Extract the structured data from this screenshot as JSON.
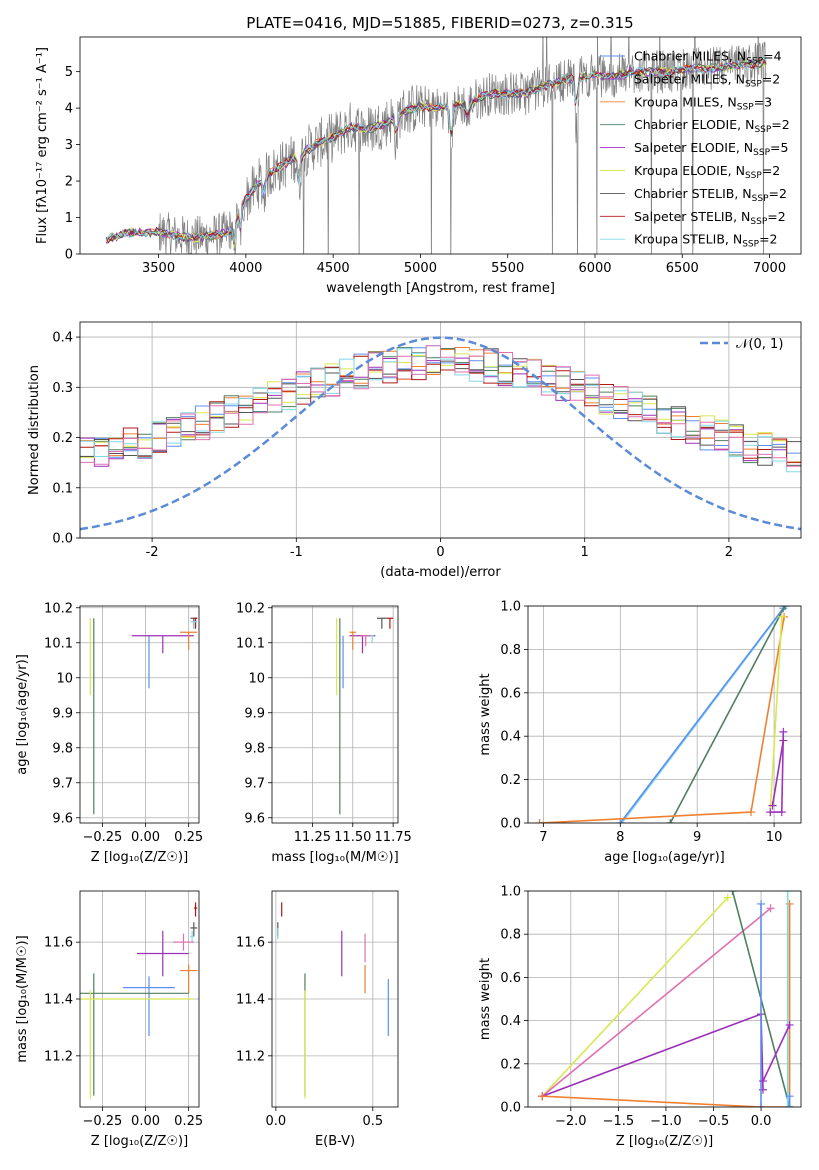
{
  "figure_title": "PLATE=0416, MJD=51885, FIBERID=0273, z=0.315",
  "colors": {
    "chabrier_miles": "#5b8ff0",
    "salpeter_miles": "#9b30b5",
    "kroupa_miles": "#f08030",
    "chabrier_elodie": "#4f7f5f",
    "salpeter_elodie": "#a030c0",
    "kroupa_elodie": "#d8e850",
    "chabrier_stelib": "#555555",
    "salpeter_stelib": "#b01818",
    "kroupa_stelib": "#80d8e8",
    "data": "#808080",
    "pink": "#e070b0",
    "normal": "#5b8ad8"
  },
  "chart_data": [
    {
      "type": "line",
      "title": "PLATE=0416, MJD=51885, FIBERID=0273, z=0.315",
      "xlabel": "wavelength [Angstrom, rest frame]",
      "ylabel": "Flux [fλ10⁻¹⁷ erg cm⁻² s⁻¹ A⁻¹]",
      "xlim": [
        3050,
        7180
      ],
      "ylim": [
        0,
        5.95
      ],
      "xticks": [
        3500,
        4000,
        4500,
        5000,
        5500,
        6000,
        6500,
        7000
      ],
      "yticks": [
        0,
        1,
        2,
        3,
        4,
        5
      ],
      "grid": false,
      "legend_position": "top-right",
      "legend": [
        {
          "label": "Chabrier MILES, N",
          "sub": "SSP",
          "tail": "=4",
          "color_key": "chabrier_miles"
        },
        {
          "label": "Salpeter MILES, N",
          "sub": "SSP",
          "tail": "=2",
          "color_key": "salpeter_miles"
        },
        {
          "label": "Kroupa MILES, N",
          "sub": "SSP",
          "tail": "=3",
          "color_key": "kroupa_miles"
        },
        {
          "label": "Chabrier ELODIE, N",
          "sub": "SSP",
          "tail": "=2",
          "color_key": "chabrier_elodie"
        },
        {
          "label": "Salpeter ELODIE, N",
          "sub": "SSP",
          "tail": "=5",
          "color_key": "salpeter_elodie"
        },
        {
          "label": "Kroupa ELODIE, N",
          "sub": "SSP",
          "tail": "=2",
          "color_key": "kroupa_elodie"
        },
        {
          "label": "Chabrier STELIB, N",
          "sub": "SSP",
          "tail": "=2",
          "color_key": "chabrier_stelib"
        },
        {
          "label": "Salpeter STELIB, N",
          "sub": "SSP",
          "tail": "=2",
          "color_key": "salpeter_stelib"
        },
        {
          "label": "Kroupa STELIB, N",
          "sub": "SSP",
          "tail": "=2",
          "color_key": "kroupa_stelib"
        }
      ],
      "continuum": {
        "x": [
          3200,
          3350,
          3500,
          3600,
          3700,
          3800,
          3900,
          4000,
          4100,
          4200,
          4300,
          4400,
          4500,
          4600,
          4700,
          4800,
          4900,
          5000,
          5100,
          5200,
          5300,
          5400,
          5500,
          5600,
          5700,
          5800,
          5900,
          6000,
          6100,
          6200,
          6300,
          6400,
          6500,
          6600,
          6700,
          6800,
          6950
        ],
        "y": [
          0.4,
          0.6,
          0.6,
          0.5,
          0.45,
          0.5,
          0.6,
          1.5,
          2.1,
          2.4,
          2.7,
          3.0,
          3.2,
          3.5,
          3.4,
          3.6,
          3.9,
          4.05,
          4.0,
          4.05,
          4.2,
          4.4,
          4.4,
          4.4,
          4.6,
          4.75,
          4.85,
          4.9,
          4.85,
          5.0,
          5.0,
          5.0,
          5.05,
          5.1,
          5.1,
          5.15,
          5.25
        ]
      },
      "absorption_features": [
        {
          "x": 3933,
          "depth": 0.6
        },
        {
          "x": 3968,
          "depth": 0.5
        },
        {
          "x": 4102,
          "depth": 0.4
        },
        {
          "x": 4304,
          "depth": 0.7
        },
        {
          "x": 4861,
          "depth": 0.5
        },
        {
          "x": 5175,
          "depth": 0.9
        },
        {
          "x": 5270,
          "depth": 0.4
        },
        {
          "x": 5893,
          "depth": 0.9
        }
      ]
    },
    {
      "type": "area",
      "xlabel": "(data-model)/error",
      "ylabel": "Normed distribution",
      "xlim": [
        -2.5,
        2.5
      ],
      "ylim": [
        0,
        0.43
      ],
      "xticks": [
        -2,
        -1,
        0,
        1,
        2
      ],
      "yticks": [
        0.0,
        0.1,
        0.2,
        0.3,
        0.4
      ],
      "grid": true,
      "legend_position": "top-right",
      "legend_label": "𝒩(0, 1)",
      "bin_width": 0.1,
      "series_color_keys": [
        "chabrier_miles",
        "salpeter_miles",
        "kroupa_miles",
        "chabrier_elodie",
        "kroupa_elodie",
        "chabrier_stelib",
        "salpeter_stelib",
        "kroupa_stelib",
        "pink"
      ],
      "curve": {
        "mean": 0,
        "sigma": 1
      }
    },
    {
      "type": "scatter",
      "xlabel": "Z [log₁₀(Z/Z☉)]",
      "ylabel": "age  [log₁₀(age/yr)]",
      "xlim": [
        -0.38,
        0.31
      ],
      "ylim": [
        9.585,
        10.205
      ],
      "xticks": [
        -0.25,
        0.0,
        0.25
      ],
      "xtick_labels": [
        "−0.25",
        "0.00",
        "0.25"
      ],
      "yticks": [
        9.6,
        9.7,
        9.8,
        9.9,
        10.0,
        10.1,
        10.2
      ],
      "grid": true,
      "points": [
        {
          "x": 0.02,
          "y": 10.12,
          "xerr": 0.0,
          "yerr_lo": 0.15,
          "yerr_hi": 0.0,
          "color_key": "chabrier_miles"
        },
        {
          "x": 0.1,
          "y": 10.12,
          "xerr": 0.18,
          "yerr_lo": 0.05,
          "yerr_hi": 0.0,
          "color_key": "salpeter_miles"
        },
        {
          "x": 0.25,
          "y": 10.13,
          "xerr": 0.05,
          "yerr_lo": 0.05,
          "yerr_hi": 0.0,
          "color_key": "kroupa_miles"
        },
        {
          "x": -0.3,
          "y": 10.17,
          "xerr": 0.0,
          "yerr_lo": 0.56,
          "yerr_hi": 0.0,
          "color_key": "chabrier_elodie"
        },
        {
          "x": -0.32,
          "y": 10.17,
          "xerr": 0.0,
          "yerr_lo": 0.22,
          "yerr_hi": 0.0,
          "color_key": "kroupa_elodie"
        },
        {
          "x": 0.28,
          "y": 10.17,
          "xerr": 0.02,
          "yerr_lo": 0.03,
          "yerr_hi": 0.0,
          "color_key": "chabrier_stelib"
        },
        {
          "x": 0.29,
          "y": 10.17,
          "xerr": 0.01,
          "yerr_lo": 0.03,
          "yerr_hi": 0.0,
          "color_key": "salpeter_stelib"
        },
        {
          "x": 0.28,
          "y": 10.16,
          "xerr": 0.02,
          "yerr_lo": 0.02,
          "yerr_hi": 0.0,
          "color_key": "kroupa_stelib"
        }
      ]
    },
    {
      "type": "scatter",
      "xlabel": "mass [log₁₀(M/M☉)]",
      "xlim": [
        11.0,
        11.78
      ],
      "ylim": [
        9.585,
        10.205
      ],
      "xticks": [
        11.25,
        11.5,
        11.75
      ],
      "xtick_labels": [
        "11.25",
        "11.50",
        "11.75"
      ],
      "yticks": [
        9.6,
        9.7,
        9.8,
        9.9,
        10.0,
        10.1,
        10.2
      ],
      "grid": true,
      "points": [
        {
          "x": 11.44,
          "y": 10.12,
          "xerr": 0.0,
          "yerr_lo": 0.15,
          "yerr_hi": 0.0,
          "color_key": "chabrier_miles"
        },
        {
          "x": 11.56,
          "y": 10.12,
          "xerr": 0.08,
          "yerr_lo": 0.05,
          "yerr_hi": 0.0,
          "color_key": "salpeter_miles"
        },
        {
          "x": 11.5,
          "y": 10.13,
          "xerr": 0.02,
          "yerr_lo": 0.05,
          "yerr_hi": 0.0,
          "color_key": "kroupa_miles"
        },
        {
          "x": 11.42,
          "y": 10.17,
          "xerr": 0.0,
          "yerr_lo": 0.56,
          "yerr_hi": 0.0,
          "color_key": "chabrier_elodie"
        },
        {
          "x": 11.4,
          "y": 10.17,
          "xerr": 0.0,
          "yerr_lo": 0.22,
          "yerr_hi": 0.0,
          "color_key": "kroupa_elodie"
        },
        {
          "x": 11.68,
          "y": 10.17,
          "xerr": 0.03,
          "yerr_lo": 0.03,
          "yerr_hi": 0.0,
          "color_key": "chabrier_stelib"
        },
        {
          "x": 11.73,
          "y": 10.17,
          "xerr": 0.02,
          "yerr_lo": 0.03,
          "yerr_hi": 0.0,
          "color_key": "salpeter_stelib"
        },
        {
          "x": 11.62,
          "y": 10.12,
          "xerr": 0.01,
          "yerr_lo": 0.02,
          "yerr_hi": 0.0,
          "color_key": "kroupa_stelib"
        },
        {
          "x": 11.58,
          "y": 10.12,
          "xerr": 0.03,
          "yerr_lo": 0.03,
          "yerr_hi": 0.0,
          "color_key": "pink"
        }
      ]
    },
    {
      "type": "line",
      "xlabel": "age  [log₁₀(age/yr)]",
      "ylabel": "mass weight",
      "xlim": [
        6.8,
        10.35
      ],
      "ylim": [
        0,
        1
      ],
      "xticks": [
        7,
        8,
        9,
        10
      ],
      "yticks": [
        0.0,
        0.2,
        0.4,
        0.6,
        0.8,
        1.0
      ],
      "grid": true,
      "series": [
        {
          "color_key": "kroupa_stelib",
          "x": [
            8.02,
            10.15
          ],
          "y": [
            0.0,
            1.0
          ]
        },
        {
          "color_key": "chabrier_miles",
          "x": [
            8.0,
            10.12
          ],
          "y": [
            0.0,
            0.99
          ]
        },
        {
          "color_key": "chabrier_elodie",
          "x": [
            8.65,
            10.14
          ],
          "y": [
            0.0,
            1.0
          ]
        },
        {
          "color_key": "kroupa_miles",
          "x": [
            6.95,
            9.7,
            10.13
          ],
          "y": [
            0.0,
            0.05,
            0.95
          ]
        },
        {
          "color_key": "kroupa_elodie",
          "x": [
            9.95,
            10.1
          ],
          "y": [
            0.05,
            0.95
          ]
        },
        {
          "color_key": "salpeter_elodie",
          "x": [
            9.95,
            10.1,
            10.12
          ],
          "y": [
            0.05,
            0.05,
            0.42
          ]
        },
        {
          "color_key": "salpeter_miles",
          "x": [
            9.98,
            10.12
          ],
          "y": [
            0.08,
            0.38
          ]
        }
      ]
    },
    {
      "type": "scatter",
      "xlabel": "Z [log₁₀(Z/Z☉)]",
      "ylabel": "mass [log₁₀(M/M☉)]",
      "xlim": [
        -0.38,
        0.31
      ],
      "ylim": [
        11.02,
        11.78
      ],
      "xticks": [
        -0.25,
        0.0,
        0.25
      ],
      "xtick_labels": [
        "−0.25",
        "0.00",
        "0.25"
      ],
      "yticks": [
        11.2,
        11.4,
        11.6
      ],
      "grid": true,
      "points": [
        {
          "x": 0.02,
          "y": 11.44,
          "xerr": 0.15,
          "yerr_lo": 0.17,
          "yerr_hi": 0.04,
          "color_key": "chabrier_miles"
        },
        {
          "x": 0.1,
          "y": 11.56,
          "xerr": 0.15,
          "yerr_lo": 0.08,
          "yerr_hi": 0.08,
          "color_key": "salpeter_miles"
        },
        {
          "x": 0.25,
          "y": 11.5,
          "xerr": 0.05,
          "yerr_lo": 0.08,
          "yerr_hi": 0.02,
          "color_key": "kroupa_miles"
        },
        {
          "x": -0.3,
          "y": 11.42,
          "xerr": 0.55,
          "yerr_lo": 0.36,
          "yerr_hi": 0.07,
          "color_key": "chabrier_elodie"
        },
        {
          "x": -0.32,
          "y": 11.4,
          "xerr": 0.6,
          "yerr_lo": 0.35,
          "yerr_hi": 0.03,
          "color_key": "kroupa_elodie"
        },
        {
          "x": 0.28,
          "y": 11.65,
          "xerr": 0.02,
          "yerr_lo": 0.03,
          "yerr_hi": 0.02,
          "color_key": "chabrier_stelib"
        },
        {
          "x": 0.29,
          "y": 11.72,
          "xerr": 0.01,
          "yerr_lo": 0.03,
          "yerr_hi": 0.02,
          "color_key": "salpeter_stelib"
        },
        {
          "x": 0.27,
          "y": 11.62,
          "xerr": 0.01,
          "yerr_lo": 0.02,
          "yerr_hi": 0.02,
          "color_key": "kroupa_stelib"
        },
        {
          "x": 0.22,
          "y": 11.6,
          "xerr": 0.06,
          "yerr_lo": 0.03,
          "yerr_hi": 0.03,
          "color_key": "pink"
        }
      ]
    },
    {
      "type": "scatter",
      "xlabel": "E(B-V)",
      "xlim": [
        -0.02,
        0.63
      ],
      "ylim": [
        11.02,
        11.78
      ],
      "xticks": [
        0.0,
        0.5
      ],
      "xtick_labels": [
        "0.0",
        "0.5"
      ],
      "yticks": [
        11.2,
        11.4,
        11.6
      ],
      "grid": true,
      "points": [
        {
          "x": 0.58,
          "y": 11.4,
          "xerr": 0.0,
          "yerr_lo": 0.13,
          "yerr_hi": 0.07,
          "color_key": "chabrier_miles"
        },
        {
          "x": 0.34,
          "y": 11.56,
          "xerr": 0.0,
          "yerr_lo": 0.08,
          "yerr_hi": 0.08,
          "color_key": "salpeter_miles"
        },
        {
          "x": 0.46,
          "y": 11.5,
          "xerr": 0.0,
          "yerr_lo": 0.08,
          "yerr_hi": 0.02,
          "color_key": "kroupa_miles"
        },
        {
          "x": 0.15,
          "y": 11.42,
          "xerr": 0.0,
          "yerr_lo": 0.36,
          "yerr_hi": 0.07,
          "color_key": "chabrier_elodie"
        },
        {
          "x": 0.15,
          "y": 11.4,
          "xerr": 0.0,
          "yerr_lo": 0.35,
          "yerr_hi": 0.03,
          "color_key": "kroupa_elodie"
        },
        {
          "x": 0.01,
          "y": 11.65,
          "xerr": 0.0,
          "yerr_lo": 0.03,
          "yerr_hi": 0.02,
          "color_key": "chabrier_stelib"
        },
        {
          "x": 0.03,
          "y": 11.72,
          "xerr": 0.0,
          "yerr_lo": 0.03,
          "yerr_hi": 0.02,
          "color_key": "salpeter_stelib"
        },
        {
          "x": 0.01,
          "y": 11.63,
          "xerr": 0.0,
          "yerr_lo": 0.02,
          "yerr_hi": 0.02,
          "color_key": "kroupa_stelib"
        },
        {
          "x": 0.46,
          "y": 11.58,
          "xerr": 0.0,
          "yerr_lo": 0.05,
          "yerr_hi": 0.05,
          "color_key": "pink"
        }
      ]
    },
    {
      "type": "line",
      "xlabel": "Z [log₁₀(Z/Z☉)]",
      "ylabel": "mass weight",
      "xlim": [
        -2.45,
        0.42
      ],
      "ylim": [
        0,
        1
      ],
      "xticks": [
        -2.0,
        -1.5,
        -1.0,
        -0.5,
        0.0
      ],
      "xtick_labels": [
        "−2.0",
        "−1.5",
        "−1.0",
        "−0.5",
        "0.0"
      ],
      "yticks": [
        0.0,
        0.2,
        0.4,
        0.6,
        0.8,
        1.0
      ],
      "grid": true,
      "series": [
        {
          "color_key": "kroupa_elodie",
          "x": [
            -2.3,
            -0.35
          ],
          "y": [
            0.05,
            0.97
          ]
        },
        {
          "color_key": "pink",
          "x": [
            -2.3,
            0.1
          ],
          "y": [
            0.05,
            0.92
          ]
        },
        {
          "color_key": "salpeter_miles",
          "x": [
            -2.3,
            0.0,
            0.02
          ],
          "y": [
            0.05,
            0.43,
            0.08
          ]
        },
        {
          "color_key": "kroupa_miles",
          "x": [
            -2.3,
            0.0,
            0.3,
            0.3
          ],
          "y": [
            0.05,
            0.0,
            0.0,
            0.94
          ]
        },
        {
          "color_key": "chabrier_elodie",
          "x": [
            -0.3,
            0.3
          ],
          "y": [
            1.0,
            0.0
          ]
        },
        {
          "color_key": "chabrier_miles",
          "x": [
            0.0,
            0.0
          ],
          "y": [
            0.0,
            0.94
          ]
        },
        {
          "color_key": "kroupa_stelib",
          "x": [
            0.28,
            0.28
          ],
          "y": [
            0.0,
            1.0
          ]
        },
        {
          "color_key": "salpeter_elodie",
          "x": [
            0.02,
            0.3
          ],
          "y": [
            0.12,
            0.38
          ]
        },
        {
          "color_key": "chabrier_miles",
          "x": [
            0.3,
            0.3
          ],
          "y": [
            0.0,
            0.05
          ]
        }
      ]
    }
  ]
}
